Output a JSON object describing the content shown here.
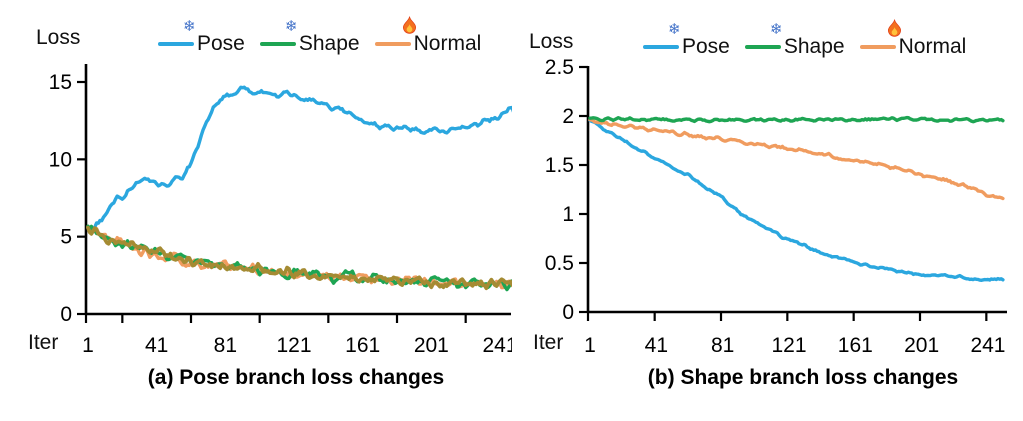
{
  "captions": [
    "(a) Pose branch loss changes",
    "(b) Shape branch loss changes"
  ],
  "icons": {
    "snowflake_glyph": "❄",
    "snowflake_color": "#4574c9",
    "flame_outer_color": "#f3701e",
    "flame_inner_color": "#ffc23c",
    "flame_edge_color": "#e2411b"
  },
  "axis_color": "#000000",
  "chart_data": [
    {
      "type": "line",
      "title": "(a) Pose branch loss changes",
      "xlabel": "Iter",
      "ylabel": "Loss",
      "xlim": [
        1,
        250
      ],
      "ylim": [
        0,
        15
      ],
      "x_ticks": [
        1,
        41,
        81,
        121,
        161,
        201,
        241
      ],
      "y_ticks": [
        0,
        5,
        10,
        15
      ],
      "grid": false,
      "legend_position": "top",
      "series": [
        {
          "name": "Pose",
          "icon": "snowflake",
          "color": "#2ba7df",
          "noise": 0.16,
          "keypoints": [
            [
              1,
              5.7
            ],
            [
              4,
              5.55
            ],
            [
              8,
              6.1
            ],
            [
              12,
              6.5
            ],
            [
              15,
              7.1
            ],
            [
              18,
              7.6
            ],
            [
              22,
              7.5
            ],
            [
              26,
              8.1
            ],
            [
              31,
              8.5
            ],
            [
              36,
              8.6
            ],
            [
              41,
              8.5
            ],
            [
              45,
              8.3
            ],
            [
              49,
              8.6
            ],
            [
              53,
              8.7
            ],
            [
              57,
              9.0
            ],
            [
              61,
              9.8
            ],
            [
              65,
              10.9
            ],
            [
              69,
              12.0
            ],
            [
              73,
              13.0
            ],
            [
              77,
              13.7
            ],
            [
              81,
              14.1
            ],
            [
              87,
              14.4
            ],
            [
              93,
              14.5
            ],
            [
              99,
              14.3
            ],
            [
              105,
              14.4
            ],
            [
              111,
              14.2
            ],
            [
              117,
              14.2
            ],
            [
              123,
              14.0
            ],
            [
              129,
              13.9
            ],
            [
              135,
              13.6
            ],
            [
              141,
              13.4
            ],
            [
              147,
              13.3
            ],
            [
              152,
              13.1
            ],
            [
              158,
              12.7
            ],
            [
              164,
              12.4
            ],
            [
              170,
              12.2
            ],
            [
              176,
              12.0
            ],
            [
              182,
              11.9
            ],
            [
              192,
              12.0
            ],
            [
              202,
              11.9
            ],
            [
              212,
              11.9
            ],
            [
              222,
              12.1
            ],
            [
              230,
              12.3
            ],
            [
              238,
              12.6
            ],
            [
              244,
              13.0
            ],
            [
              248,
              13.2
            ],
            [
              250,
              12.9
            ]
          ]
        },
        {
          "name": "Shape",
          "icon": "snowflake",
          "color": "#1ea553",
          "noise": 0.26,
          "keypoints": [
            [
              1,
              5.6
            ],
            [
              5,
              5.4
            ],
            [
              10,
              5.1
            ],
            [
              16,
              4.8
            ],
            [
              22,
              4.6
            ],
            [
              30,
              4.25
            ],
            [
              38,
              4.05
            ],
            [
              46,
              3.8
            ],
            [
              54,
              3.6
            ],
            [
              62,
              3.45
            ],
            [
              70,
              3.3
            ],
            [
              78,
              3.15
            ],
            [
              86,
              3.0
            ],
            [
              95,
              2.9
            ],
            [
              105,
              2.78
            ],
            [
              115,
              2.68
            ],
            [
              125,
              2.6
            ],
            [
              135,
              2.5
            ],
            [
              145,
              2.42
            ],
            [
              155,
              2.35
            ],
            [
              165,
              2.3
            ],
            [
              175,
              2.25
            ],
            [
              185,
              2.2
            ],
            [
              195,
              2.15
            ],
            [
              205,
              2.1
            ],
            [
              215,
              2.05
            ],
            [
              225,
              2.0
            ],
            [
              235,
              1.97
            ],
            [
              245,
              1.93
            ],
            [
              250,
              1.9
            ]
          ]
        },
        {
          "name": "Normal",
          "icon": "flame",
          "color": "#f09c5f",
          "overlap_color": "#a58b33",
          "noise": 0.26,
          "keypoints": [
            [
              1,
              5.55
            ],
            [
              5,
              5.35
            ],
            [
              10,
              5.05
            ],
            [
              16,
              4.75
            ],
            [
              22,
              4.55
            ],
            [
              30,
              4.2
            ],
            [
              38,
              4.0
            ],
            [
              46,
              3.75
            ],
            [
              54,
              3.55
            ],
            [
              62,
              3.4
            ],
            [
              70,
              3.25
            ],
            [
              78,
              3.1
            ],
            [
              86,
              2.97
            ],
            [
              95,
              2.87
            ],
            [
              105,
              2.75
            ],
            [
              115,
              2.65
            ],
            [
              125,
              2.57
            ],
            [
              135,
              2.48
            ],
            [
              145,
              2.4
            ],
            [
              155,
              2.33
            ],
            [
              165,
              2.28
            ],
            [
              175,
              2.23
            ],
            [
              185,
              2.18
            ],
            [
              195,
              2.13
            ],
            [
              205,
              2.08
            ],
            [
              215,
              2.03
            ],
            [
              225,
              1.98
            ],
            [
              235,
              1.95
            ],
            [
              245,
              1.91
            ],
            [
              250,
              1.88
            ]
          ]
        }
      ]
    },
    {
      "type": "line",
      "title": "(b) Shape branch loss changes",
      "xlabel": "Iter",
      "ylabel": "Loss",
      "xlim": [
        1,
        250
      ],
      "ylim": [
        0,
        2.5
      ],
      "x_ticks": [
        1,
        41,
        81,
        121,
        161,
        201,
        241
      ],
      "y_ticks": [
        0,
        0.5,
        1,
        1.5,
        2,
        2.5
      ],
      "grid": false,
      "legend_position": "top",
      "series": [
        {
          "name": "Pose",
          "icon": "snowflake",
          "color": "#2ba7df",
          "noise": 0.012,
          "keypoints": [
            [
              1,
              1.96
            ],
            [
              10,
              1.86
            ],
            [
              20,
              1.76
            ],
            [
              30,
              1.65
            ],
            [
              40,
              1.57
            ],
            [
              50,
              1.48
            ],
            [
              60,
              1.4
            ],
            [
              70,
              1.28
            ],
            [
              80,
              1.17
            ],
            [
              90,
              1.03
            ],
            [
              100,
              0.92
            ],
            [
              110,
              0.83
            ],
            [
              120,
              0.74
            ],
            [
              130,
              0.67
            ],
            [
              140,
              0.61
            ],
            [
              150,
              0.56
            ],
            [
              160,
              0.51
            ],
            [
              170,
              0.47
            ],
            [
              180,
              0.44
            ],
            [
              190,
              0.41
            ],
            [
              200,
              0.39
            ],
            [
              210,
              0.37
            ],
            [
              220,
              0.36
            ],
            [
              230,
              0.34
            ],
            [
              240,
              0.335
            ],
            [
              250,
              0.33
            ]
          ]
        },
        {
          "name": "Shape",
          "icon": "snowflake",
          "color": "#1ea553",
          "noise": 0.012,
          "keypoints": [
            [
              1,
              1.97
            ],
            [
              60,
              1.96
            ],
            [
              120,
              1.96
            ],
            [
              180,
              1.97
            ],
            [
              250,
              1.96
            ]
          ]
        },
        {
          "name": "Normal",
          "icon": "flame",
          "color": "#f09c5f",
          "noise": 0.015,
          "keypoints": [
            [
              1,
              1.95
            ],
            [
              20,
              1.9
            ],
            [
              40,
              1.86
            ],
            [
              60,
              1.81
            ],
            [
              80,
              1.77
            ],
            [
              100,
              1.72
            ],
            [
              120,
              1.67
            ],
            [
              140,
              1.61
            ],
            [
              160,
              1.55
            ],
            [
              180,
              1.48
            ],
            [
              200,
              1.41
            ],
            [
              215,
              1.35
            ],
            [
              230,
              1.27
            ],
            [
              240,
              1.21
            ],
            [
              250,
              1.14
            ]
          ]
        }
      ]
    }
  ]
}
